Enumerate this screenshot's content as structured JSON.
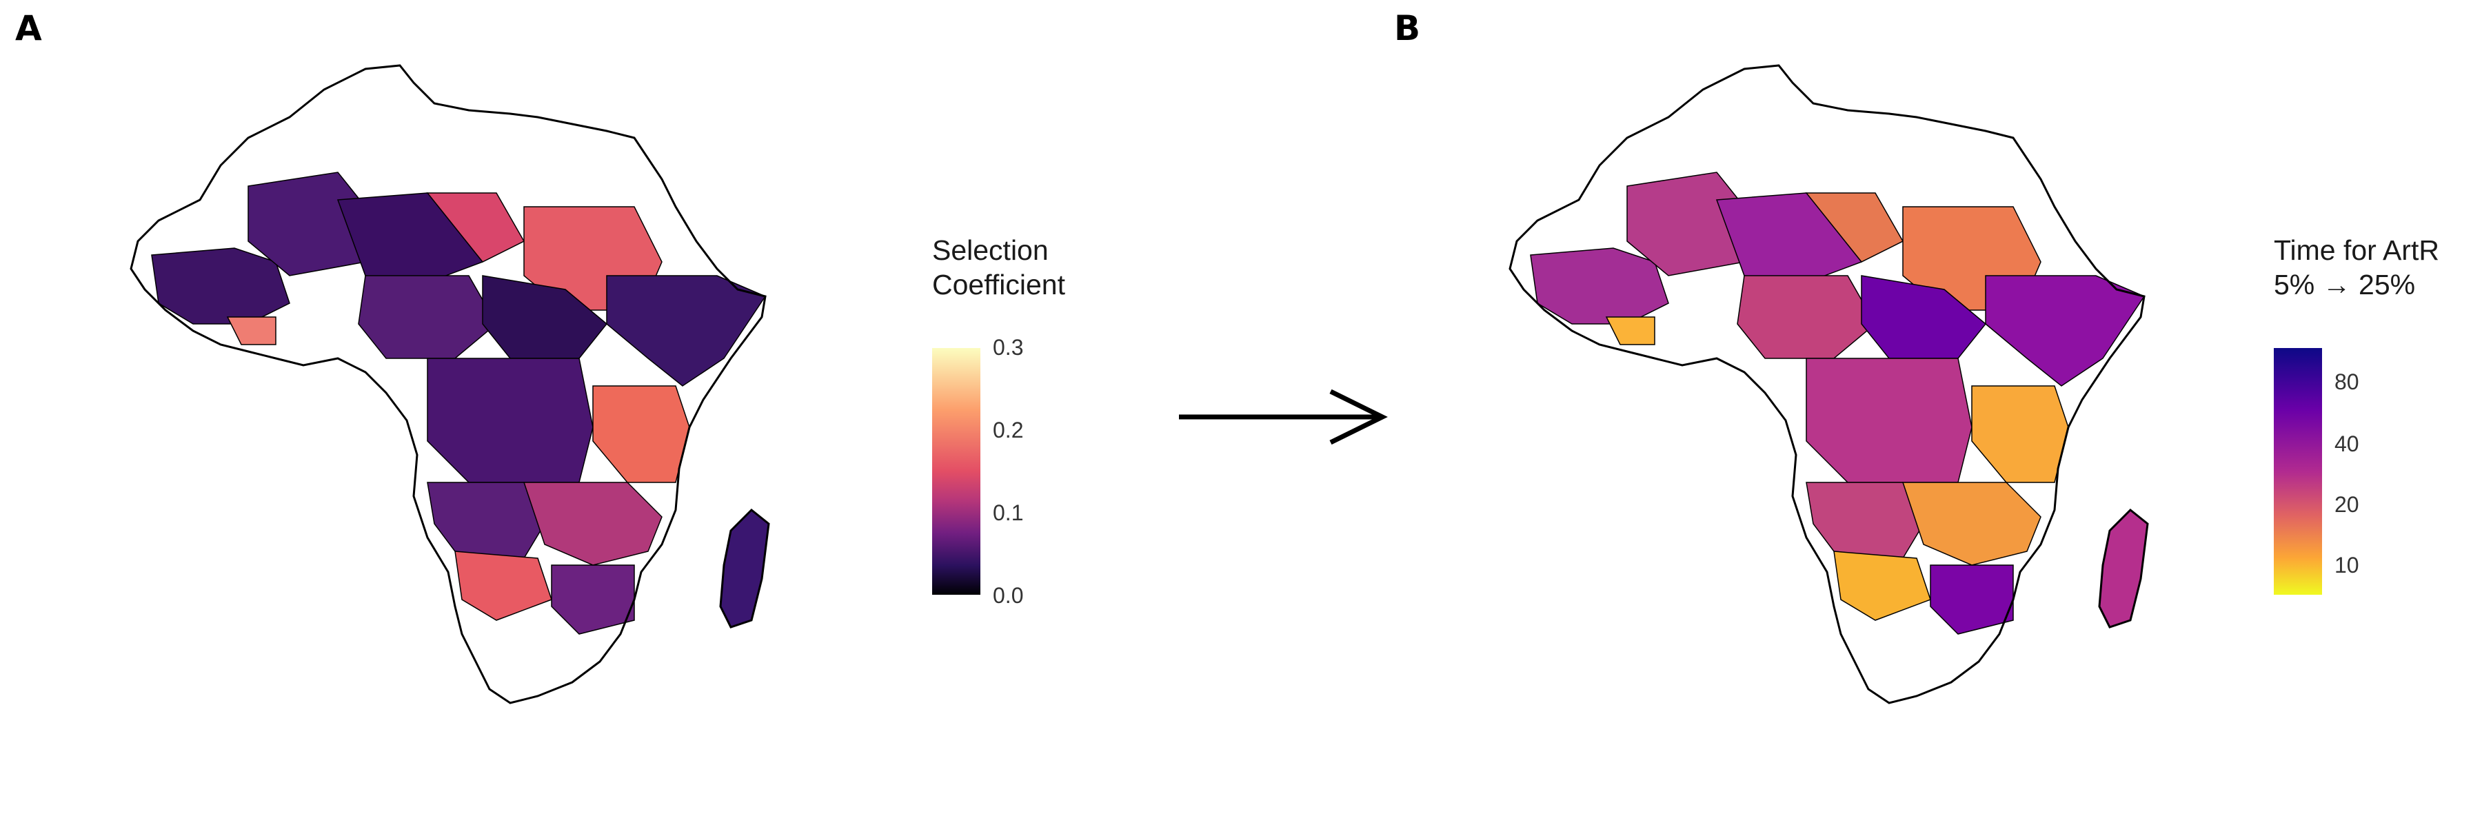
{
  "panels": {
    "a": {
      "label": "A",
      "legend": {
        "title": "Selection\nCoefficient",
        "ticks": [
          "0.3",
          "0.2",
          "0.1",
          "0.0"
        ],
        "scale": "magma",
        "range": [
          0.0,
          0.3
        ]
      }
    },
    "b": {
      "label": "B",
      "legend": {
        "title": "Time for ArtR\n5% → 25%",
        "ticks": [
          "80",
          "40",
          "20",
          "10"
        ],
        "scale": "plasma (reversed, log)",
        "range": [
          5,
          100
        ]
      }
    }
  },
  "colors": {
    "outline": "#000000",
    "unfilled": "#ffffff",
    "magma_low": "#000004",
    "magma_high": "#fcfdbf",
    "plasma_low": "#f0f921",
    "plasma_high": "#0d0887"
  },
  "connector": "right-arrow"
}
